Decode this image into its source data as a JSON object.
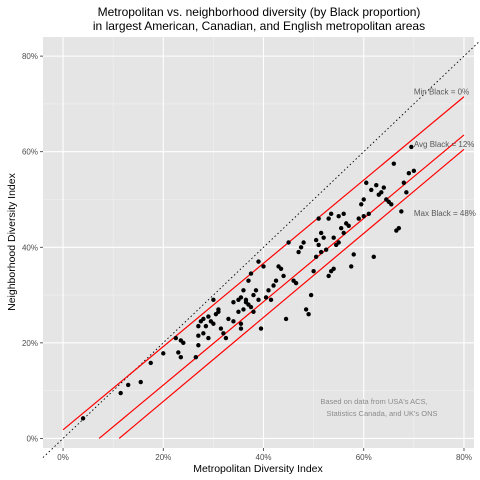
{
  "colors": {
    "panel": "#e5e5e5",
    "grid_major": "#ffffff",
    "grid_minor": "#f2f2f2",
    "points": "#000000",
    "reference_lines": "#ff0000",
    "identity_line": "#000000"
  },
  "chart_data": {
    "type": "scatter",
    "title_line1": "Metropolitan vs. neighborhood diversity (by Black proportion)",
    "title_line2": "in largest American, Canadian, and English metropolitan areas",
    "xlabel": "Metropolitan Diversity Index",
    "ylabel": "Neighborhood Diversity Index",
    "xlim": [
      -0.04,
      0.82
    ],
    "ylim": [
      -0.02,
      0.84
    ],
    "x_ticks": [
      0,
      0.2,
      0.4,
      0.6,
      0.8
    ],
    "y_ticks": [
      0,
      0.2,
      0.4,
      0.6,
      0.8
    ],
    "x_tick_labels": [
      "0%",
      "20%",
      "40%",
      "60%",
      "80%"
    ],
    "y_tick_labels": [
      "0%",
      "20%",
      "40%",
      "60%",
      "80%"
    ],
    "grid": true,
    "identity_line": {
      "style": "dotted",
      "from": [
        -0.04,
        -0.04
      ],
      "to": [
        0.84,
        0.84
      ]
    },
    "reference_lines": [
      {
        "label": "Min Black = 0%",
        "from": [
          0.0,
          0.018
        ],
        "to": [
          0.8,
          0.715
        ],
        "label_at": [
          0.7,
          0.72
        ]
      },
      {
        "label": "Avg Black = 12%",
        "from": [
          0.072,
          0.0
        ],
        "to": [
          0.8,
          0.635
        ],
        "label_at": [
          0.7,
          0.61
        ]
      },
      {
        "label": "Max Black = 48%",
        "from": [
          0.112,
          0.0
        ],
        "to": [
          0.8,
          0.605
        ],
        "label_at": [
          0.7,
          0.465
        ]
      }
    ],
    "points": [
      [
        0.04,
        0.042
      ],
      [
        0.13,
        0.112
      ],
      [
        0.155,
        0.118
      ],
      [
        0.115,
        0.095
      ],
      [
        0.175,
        0.158
      ],
      [
        0.2,
        0.178
      ],
      [
        0.23,
        0.18
      ],
      [
        0.235,
        0.17
      ],
      [
        0.235,
        0.205
      ],
      [
        0.24,
        0.2
      ],
      [
        0.225,
        0.21
      ],
      [
        0.265,
        0.17
      ],
      [
        0.27,
        0.195
      ],
      [
        0.27,
        0.215
      ],
      [
        0.28,
        0.22
      ],
      [
        0.285,
        0.235
      ],
      [
        0.29,
        0.21
      ],
      [
        0.295,
        0.245
      ],
      [
        0.27,
        0.235
      ],
      [
        0.275,
        0.245
      ],
      [
        0.28,
        0.25
      ],
      [
        0.29,
        0.255
      ],
      [
        0.3,
        0.24
      ],
      [
        0.305,
        0.26
      ],
      [
        0.31,
        0.27
      ],
      [
        0.315,
        0.23
      ],
      [
        0.32,
        0.22
      ],
      [
        0.325,
        0.21
      ],
      [
        0.33,
        0.25
      ],
      [
        0.34,
        0.245
      ],
      [
        0.35,
        0.265
      ],
      [
        0.355,
        0.23
      ],
      [
        0.36,
        0.27
      ],
      [
        0.365,
        0.29
      ],
      [
        0.37,
        0.28
      ],
      [
        0.375,
        0.275
      ],
      [
        0.38,
        0.3
      ],
      [
        0.385,
        0.31
      ],
      [
        0.39,
        0.29
      ],
      [
        0.395,
        0.23
      ],
      [
        0.34,
        0.285
      ],
      [
        0.35,
        0.29
      ],
      [
        0.355,
        0.295
      ],
      [
        0.36,
        0.31
      ],
      [
        0.365,
        0.285
      ],
      [
        0.31,
        0.265
      ],
      [
        0.3,
        0.29
      ],
      [
        0.355,
        0.24
      ],
      [
        0.38,
        0.265
      ],
      [
        0.37,
        0.33
      ],
      [
        0.375,
        0.345
      ],
      [
        0.39,
        0.37
      ],
      [
        0.4,
        0.36
      ],
      [
        0.405,
        0.295
      ],
      [
        0.41,
        0.31
      ],
      [
        0.415,
        0.29
      ],
      [
        0.42,
        0.32
      ],
      [
        0.425,
        0.33
      ],
      [
        0.43,
        0.36
      ],
      [
        0.435,
        0.355
      ],
      [
        0.44,
        0.34
      ],
      [
        0.445,
        0.25
      ],
      [
        0.45,
        0.41
      ],
      [
        0.46,
        0.33
      ],
      [
        0.465,
        0.325
      ],
      [
        0.47,
        0.39
      ],
      [
        0.475,
        0.4
      ],
      [
        0.48,
        0.41
      ],
      [
        0.485,
        0.27
      ],
      [
        0.49,
        0.26
      ],
      [
        0.495,
        0.3
      ],
      [
        0.5,
        0.35
      ],
      [
        0.505,
        0.38
      ],
      [
        0.51,
        0.405
      ],
      [
        0.515,
        0.39
      ],
      [
        0.52,
        0.42
      ],
      [
        0.525,
        0.395
      ],
      [
        0.53,
        0.34
      ],
      [
        0.535,
        0.35
      ],
      [
        0.54,
        0.355
      ],
      [
        0.545,
        0.405
      ],
      [
        0.55,
        0.41
      ],
      [
        0.555,
        0.44
      ],
      [
        0.56,
        0.43
      ],
      [
        0.565,
        0.45
      ],
      [
        0.57,
        0.445
      ],
      [
        0.575,
        0.36
      ],
      [
        0.58,
        0.385
      ],
      [
        0.59,
        0.46
      ],
      [
        0.595,
        0.49
      ],
      [
        0.6,
        0.5
      ],
      [
        0.605,
        0.535
      ],
      [
        0.6,
        0.465
      ],
      [
        0.61,
        0.47
      ],
      [
        0.615,
        0.52
      ],
      [
        0.62,
        0.38
      ],
      [
        0.625,
        0.53
      ],
      [
        0.63,
        0.51
      ],
      [
        0.635,
        0.515
      ],
      [
        0.64,
        0.525
      ],
      [
        0.645,
        0.5
      ],
      [
        0.65,
        0.495
      ],
      [
        0.655,
        0.49
      ],
      [
        0.66,
        0.575
      ],
      [
        0.665,
        0.435
      ],
      [
        0.67,
        0.44
      ],
      [
        0.675,
        0.475
      ],
      [
        0.68,
        0.535
      ],
      [
        0.685,
        0.515
      ],
      [
        0.69,
        0.555
      ],
      [
        0.695,
        0.61
      ],
      [
        0.7,
        0.56
      ],
      [
        0.505,
        0.415
      ],
      [
        0.515,
        0.43
      ],
      [
        0.53,
        0.46
      ],
      [
        0.54,
        0.42
      ],
      [
        0.51,
        0.46
      ],
      [
        0.535,
        0.47
      ],
      [
        0.55,
        0.465
      ],
      [
        0.56,
        0.47
      ]
    ],
    "annotation_line1": "Based on data from USA's ACS,",
    "annotation_line2": "Statistics Canada, and UK's ONS"
  }
}
